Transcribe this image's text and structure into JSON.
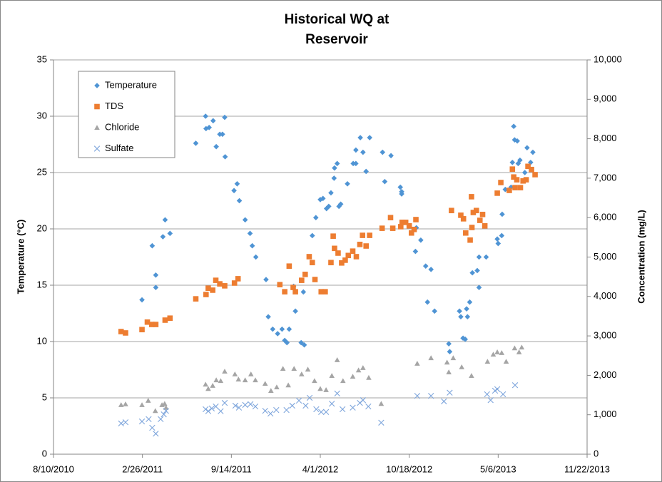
{
  "chart_data": {
    "type": "scatter",
    "title": [
      "Historical WQ at",
      "Reservoir"
    ],
    "y_label": "Temperature (°C)",
    "y2_label": "Concentration (mg/L)",
    "xlim": [
      "2010-08-10",
      "2013-11-22"
    ],
    "xticks": [
      {
        "value": "2010-08-10",
        "label": "8/10/2010"
      },
      {
        "value": "2011-02-26",
        "label": "2/26/2011"
      },
      {
        "value": "2011-09-14",
        "label": "9/14/2011"
      },
      {
        "value": "2012-04-01",
        "label": "4/1/2012"
      },
      {
        "value": "2012-10-18",
        "label": "10/18/2012"
      },
      {
        "value": "2013-05-06",
        "label": "5/6/2013"
      },
      {
        "value": "2013-11-22",
        "label": "11/22/2013"
      }
    ],
    "ylim": [
      0,
      35
    ],
    "yticks": [
      0,
      5,
      10,
      15,
      20,
      25,
      30,
      35
    ],
    "y2lim": [
      0,
      10000
    ],
    "y2ticks": [
      0,
      {
        "value": 1000,
        "label": "1,000"
      },
      {
        "value": 2000,
        "label": "2,000"
      },
      {
        "value": 3000,
        "label": "3,000"
      },
      {
        "value": 4000,
        "label": "4,000"
      },
      {
        "value": 5000,
        "label": "5,000"
      },
      {
        "value": 6000,
        "label": "6,000"
      },
      {
        "value": 7000,
        "label": "7,000"
      },
      {
        "value": 8000,
        "label": "8,000"
      },
      {
        "value": 9000,
        "label": "9,000"
      },
      {
        "value": 10000,
        "label": "10,000"
      }
    ],
    "grid": true,
    "legend": "top-left",
    "series": [
      {
        "name": "Temperature",
        "color": "#4f94d4",
        "marker": "diamond",
        "x": [
          "2011-02-25",
          "2011-03-20",
          "2011-03-28",
          "2011-03-28",
          "2011-04-13",
          "2011-04-18",
          "2011-04-29",
          "2011-06-26",
          "2011-07-18",
          "2011-07-19",
          "2011-07-26",
          "2011-08-04",
          "2011-08-11",
          "2011-08-19",
          "2011-08-25",
          "2011-08-30",
          "2011-08-31",
          "2011-09-20",
          "2011-09-27",
          "2011-10-02",
          "2011-10-15",
          "2011-10-26",
          "2011-10-31",
          "2011-11-08",
          "2011-12-01",
          "2011-12-06",
          "2011-12-16",
          "2011-12-27",
          "2012-01-06",
          "2012-01-12",
          "2012-01-17",
          "2012-01-22",
          "2012-02-01",
          "2012-02-05",
          "2012-02-18",
          "2012-02-25",
          "2012-02-23",
          "2012-03-14",
          "2012-03-22",
          "2012-04-01",
          "2012-04-07",
          "2012-04-15",
          "2012-04-20",
          "2012-04-25",
          "2012-05-02",
          "2012-05-03",
          "2012-05-09",
          "2012-05-13",
          "2012-05-17",
          "2012-06-01",
          "2012-06-14",
          "2012-06-20",
          "2012-06-20",
          "2012-06-30",
          "2012-07-06",
          "2012-07-13",
          "2012-07-21",
          "2012-08-19",
          "2012-08-24",
          "2012-09-07",
          "2012-09-28",
          "2012-10-01",
          "2012-10-01",
          "2012-11-03",
          "2012-11-01",
          "2012-11-13",
          "2012-11-24",
          "2012-12-06",
          "2012-11-28",
          "2012-12-14",
          "2013-01-15",
          "2013-01-17",
          "2013-02-08",
          "2013-02-11",
          "2013-02-16",
          "2013-02-21",
          "2013-02-24",
          "2013-02-26",
          "2013-03-03",
          "2013-03-09",
          "2013-03-24",
          "2013-03-20",
          "2013-03-24",
          "2013-04-09",
          "2013-05-04",
          "2013-05-06",
          "2013-05-14",
          "2013-05-15",
          "2013-05-22",
          "2013-06-04",
          "2013-06-07",
          "2013-06-10",
          "2013-06-12",
          "2013-06-18",
          "2013-06-20",
          "2013-06-24",
          "2013-07-05",
          "2013-07-10",
          "2013-07-18",
          "2013-07-23"
        ],
        "values": [
          13.7,
          18.5,
          15.9,
          14.8,
          19.3,
          20.8,
          19.6,
          27.6,
          30.0,
          28.9,
          29.0,
          29.6,
          27.3,
          28.4,
          28.4,
          29.9,
          26.4,
          23.4,
          24.0,
          22.5,
          20.8,
          19.6,
          18.5,
          17.5,
          15.5,
          12.2,
          11.1,
          10.7,
          11.1,
          10.1,
          9.9,
          11.1,
          14.9,
          12.7,
          9.9,
          9.7,
          14.4,
          19.4,
          21.0,
          22.6,
          22.7,
          21.8,
          22.0,
          23.2,
          24.5,
          25.4,
          25.8,
          22.0,
          22.2,
          24.0,
          25.8,
          25.8,
          27.0,
          28.1,
          26.8,
          25.1,
          28.1,
          26.8,
          24.2,
          26.5,
          23.7,
          23.3,
          23.1,
          20.1,
          18.0,
          19.0,
          16.7,
          16.4,
          13.5,
          12.7,
          9.8,
          9.1,
          12.7,
          12.2,
          10.3,
          10.2,
          12.9,
          12.2,
          13.5,
          16.1,
          14.8,
          16.3,
          17.5,
          17.5,
          19.1,
          18.7,
          19.4,
          21.3,
          23.5,
          23.7,
          25.9,
          29.1,
          27.9,
          27.8,
          25.8,
          26.1,
          25.0,
          27.2,
          25.9,
          26.8
        ]
      },
      {
        "name": "TDS",
        "color": "#ed7d31",
        "marker": "square",
        "axis": "y2",
        "x": [
          "2011-01-09",
          "2011-01-19",
          "2011-02-25",
          "2011-03-09",
          "2011-03-19",
          "2011-03-28",
          "2011-04-18",
          "2011-04-29",
          "2011-06-26",
          "2011-07-19",
          "2011-07-24",
          "2011-08-03",
          "2011-08-10",
          "2011-08-19",
          "2011-08-30",
          "2011-09-21",
          "2011-09-29",
          "2012-01-01",
          "2012-01-12",
          "2012-01-22",
          "2012-01-31",
          "2012-02-05",
          "2012-02-19",
          "2012-02-27",
          "2012-03-07",
          "2012-03-14",
          "2012-03-20",
          "2012-04-03",
          "2012-04-12",
          "2012-04-25",
          "2012-04-30",
          "2012-05-03",
          "2012-05-11",
          "2012-05-19",
          "2012-05-27",
          "2012-06-03",
          "2012-06-13",
          "2012-06-21",
          "2012-06-29",
          "2012-07-05",
          "2012-07-13",
          "2012-07-21",
          "2012-08-18",
          "2012-09-06",
          "2012-09-11",
          "2012-09-29",
          "2012-10-02",
          "2012-10-10",
          "2012-10-18",
          "2012-10-23",
          "2012-10-29",
          "2012-11-02",
          "2013-01-21",
          "2013-02-11",
          "2013-02-17",
          "2013-02-22",
          "2013-03-04",
          "2013-03-08",
          "2013-03-07",
          "2013-03-11",
          "2013-03-18",
          "2013-03-26",
          "2013-04-01",
          "2013-04-06",
          "2013-05-04",
          "2013-05-12",
          "2013-05-31",
          "2013-06-07",
          "2013-06-10",
          "2013-06-13",
          "2013-06-17",
          "2013-06-25",
          "2013-07-01",
          "2013-07-08",
          "2013-07-12",
          "2013-07-20",
          "2013-07-28"
        ],
        "values": [
          3110,
          3075,
          3160,
          3350,
          3290,
          3290,
          3400,
          3450,
          3940,
          4050,
          4210,
          4160,
          4410,
          4320,
          4270,
          4340,
          4450,
          4300,
          4120,
          4770,
          4230,
          4120,
          4410,
          4560,
          5010,
          4860,
          4430,
          4120,
          4120,
          4860,
          5530,
          5220,
          5100,
          4850,
          4920,
          5040,
          5150,
          5010,
          5320,
          5550,
          5280,
          5550,
          5730,
          6000,
          5730,
          5770,
          5880,
          5880,
          5790,
          5610,
          5700,
          5950,
          6180,
          6060,
          5970,
          5610,
          5430,
          5750,
          6530,
          6130,
          6180,
          5930,
          6080,
          5790,
          6620,
          6890,
          6690,
          7230,
          7030,
          6760,
          6960,
          6760,
          6930,
          6960,
          7300,
          7220,
          7090
        ]
      },
      {
        "name": "Chloride",
        "color": "#a5a5a5",
        "marker": "triangle",
        "axis": "y2",
        "x": [
          "2011-01-09",
          "2011-01-19",
          "2011-02-25",
          "2011-03-11",
          "2011-03-27",
          "2011-04-11",
          "2011-04-17",
          "2011-04-20",
          "2011-07-18",
          "2011-07-24",
          "2011-08-03",
          "2011-08-11",
          "2011-08-21",
          "2011-08-30",
          "2011-09-22",
          "2011-09-30",
          "2011-10-15",
          "2011-10-28",
          "2011-11-07",
          "2011-11-29",
          "2011-12-12",
          "2011-12-25",
          "2012-01-08",
          "2012-01-20",
          "2012-02-02",
          "2012-02-19",
          "2012-03-04",
          "2012-03-19",
          "2012-04-01",
          "2012-04-14",
          "2012-04-27",
          "2012-05-09",
          "2012-05-22",
          "2012-06-13",
          "2012-06-26",
          "2012-07-06",
          "2012-07-19",
          "2012-08-16",
          "2012-11-05",
          "2012-12-06",
          "2013-01-11",
          "2013-01-15",
          "2013-01-25",
          "2013-02-13",
          "2013-03-07",
          "2013-04-12",
          "2013-04-25",
          "2013-05-04",
          "2013-05-14",
          "2013-05-24",
          "2013-06-12",
          "2013-06-22",
          "2013-06-28"
        ],
        "values": [
          1250,
          1270,
          1250,
          1360,
          1100,
          1250,
          1280,
          1180,
          1770,
          1660,
          1740,
          1880,
          1860,
          2100,
          2030,
          1900,
          1880,
          2030,
          1880,
          1790,
          1610,
          1700,
          2170,
          1750,
          2170,
          2030,
          2150,
          1860,
          1660,
          1630,
          1990,
          2390,
          1860,
          1970,
          2130,
          2190,
          1940,
          1280,
          2300,
          2440,
          2330,
          2080,
          2440,
          2210,
          1990,
          2350,
          2530,
          2590,
          2570,
          2350,
          2690,
          2590,
          2710
        ]
      },
      {
        "name": "Sulfate",
        "color": "#7fa6dc",
        "marker": "cross",
        "axis": "y2",
        "x": [
          "2011-01-09",
          "2011-01-19",
          "2011-02-25",
          "2011-03-12",
          "2011-03-20",
          "2011-03-28",
          "2011-04-08",
          "2011-04-15",
          "2011-04-20",
          "2011-07-18",
          "2011-07-24",
          "2011-08-01",
          "2011-08-10",
          "2011-08-21",
          "2011-08-30",
          "2011-09-23",
          "2011-10-01",
          "2011-10-15",
          "2011-10-27",
          "2011-11-07",
          "2011-11-29",
          "2011-12-11",
          "2011-12-24",
          "2012-01-16",
          "2012-01-29",
          "2012-02-13",
          "2012-02-28",
          "2012-03-08",
          "2012-03-23",
          "2012-04-03",
          "2012-04-14",
          "2012-04-27",
          "2012-05-09",
          "2012-05-21",
          "2012-06-13",
          "2012-06-29",
          "2012-07-06",
          "2012-07-18",
          "2012-08-16",
          "2012-11-05",
          "2012-12-06",
          "2013-01-04",
          "2013-01-17",
          "2013-04-11",
          "2013-04-19",
          "2013-04-29",
          "2013-05-04",
          "2013-05-17",
          "2013-06-13"
        ],
        "values": [
          780,
          810,
          830,
          890,
          670,
          520,
          890,
          1010,
          1100,
          1140,
          1090,
          1160,
          1210,
          1090,
          1300,
          1230,
          1180,
          1250,
          1270,
          1210,
          1100,
          1030,
          1120,
          1120,
          1230,
          1360,
          1230,
          1430,
          1140,
          1070,
          1070,
          1280,
          1540,
          1140,
          1180,
          1300,
          1370,
          1210,
          800,
          1480,
          1480,
          1340,
          1560,
          1520,
          1370,
          1610,
          1650,
          1520,
          1750
        ]
      }
    ]
  }
}
